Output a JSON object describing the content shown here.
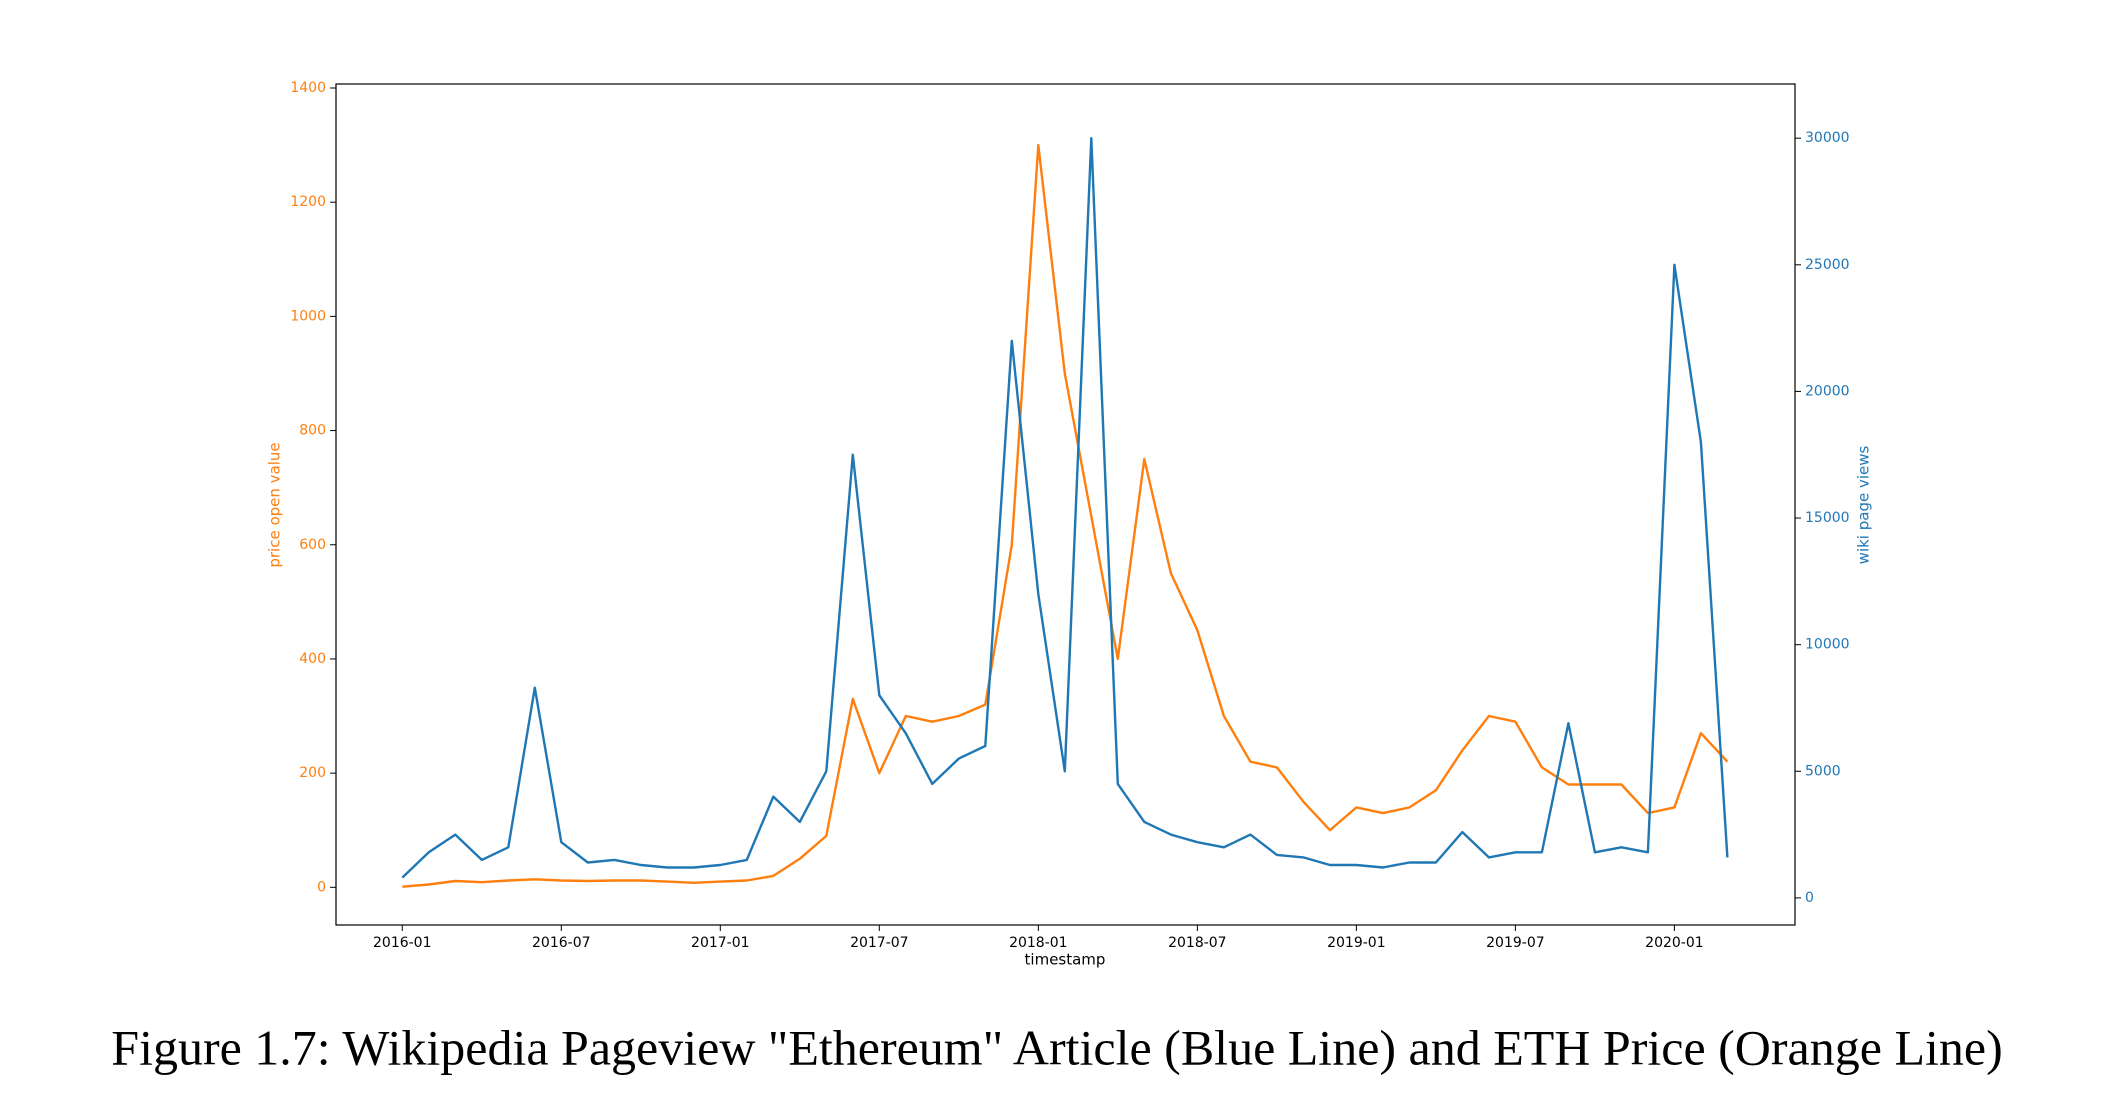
{
  "chart_data": {
    "type": "line",
    "caption": "Figure 1.7: Wikipedia Pageview \"Ethereum\" Article (Blue Line) and ETH Price (Orange Line)",
    "xlabel": "timestamp",
    "ylabel": "price open value",
    "y2label": "wiki page views",
    "x": [
      "2016-01",
      "2016-02",
      "2016-03",
      "2016-04",
      "2016-05",
      "2016-06",
      "2016-07",
      "2016-08",
      "2016-09",
      "2016-10",
      "2016-11",
      "2016-12",
      "2017-01",
      "2017-02",
      "2017-03",
      "2017-04",
      "2017-05",
      "2017-06",
      "2017-07",
      "2017-08",
      "2017-09",
      "2017-10",
      "2017-11",
      "2017-12",
      "2018-01",
      "2018-02",
      "2018-03",
      "2018-04",
      "2018-05",
      "2018-06",
      "2018-07",
      "2018-08",
      "2018-09",
      "2018-10",
      "2018-11",
      "2018-12",
      "2019-01",
      "2019-02",
      "2019-03",
      "2019-04",
      "2019-05",
      "2019-06",
      "2019-07",
      "2019-08",
      "2019-09",
      "2019-10",
      "2019-11",
      "2019-12",
      "2020-01",
      "2020-02",
      "2020-03"
    ],
    "series": [
      {
        "name": "price open value",
        "color": "#ff7f0e",
        "values": [
          1,
          5,
          11,
          9,
          12,
          14,
          12,
          11,
          12,
          12,
          10,
          8,
          10,
          12,
          20,
          50,
          90,
          330,
          200,
          300,
          290,
          300,
          320,
          600,
          1300,
          900,
          650,
          400,
          750,
          550,
          450,
          300,
          220,
          210,
          150,
          100,
          140,
          130,
          140,
          170,
          240,
          300,
          290,
          210,
          180,
          180,
          180,
          130,
          140,
          270,
          220
        ]
      },
      {
        "name": "wiki page views",
        "color": "#1f77b4",
        "axis": "y2",
        "values": [
          800,
          1800,
          2500,
          1500,
          2000,
          8300,
          2200,
          1400,
          1500,
          1300,
          1200,
          1200,
          1300,
          1500,
          4000,
          3000,
          5000,
          17500,
          8000,
          6500,
          4500,
          5500,
          6000,
          22000,
          12000,
          5000,
          30000,
          4500,
          3000,
          2500,
          2200,
          2000,
          2500,
          1700,
          1600,
          1300,
          1300,
          1200,
          1400,
          1400,
          2600,
          1600,
          1800,
          1800,
          6900,
          1800,
          2000,
          1800,
          25000,
          18000,
          1600
        ]
      }
    ],
    "ylim": [
      -66,
      1407
    ],
    "yticks": [
      0,
      200,
      400,
      600,
      800,
      1000,
      1200,
      1400
    ],
    "y2lim": [
      -1070,
      32140
    ],
    "y2ticks": [
      0,
      5000,
      10000,
      15000,
      20000,
      25000,
      30000
    ],
    "xticks": [
      "2016-01",
      "2016-07",
      "2017-01",
      "2017-07",
      "2018-01",
      "2018-07",
      "2019-01",
      "2019-07",
      "2020-01"
    ]
  }
}
